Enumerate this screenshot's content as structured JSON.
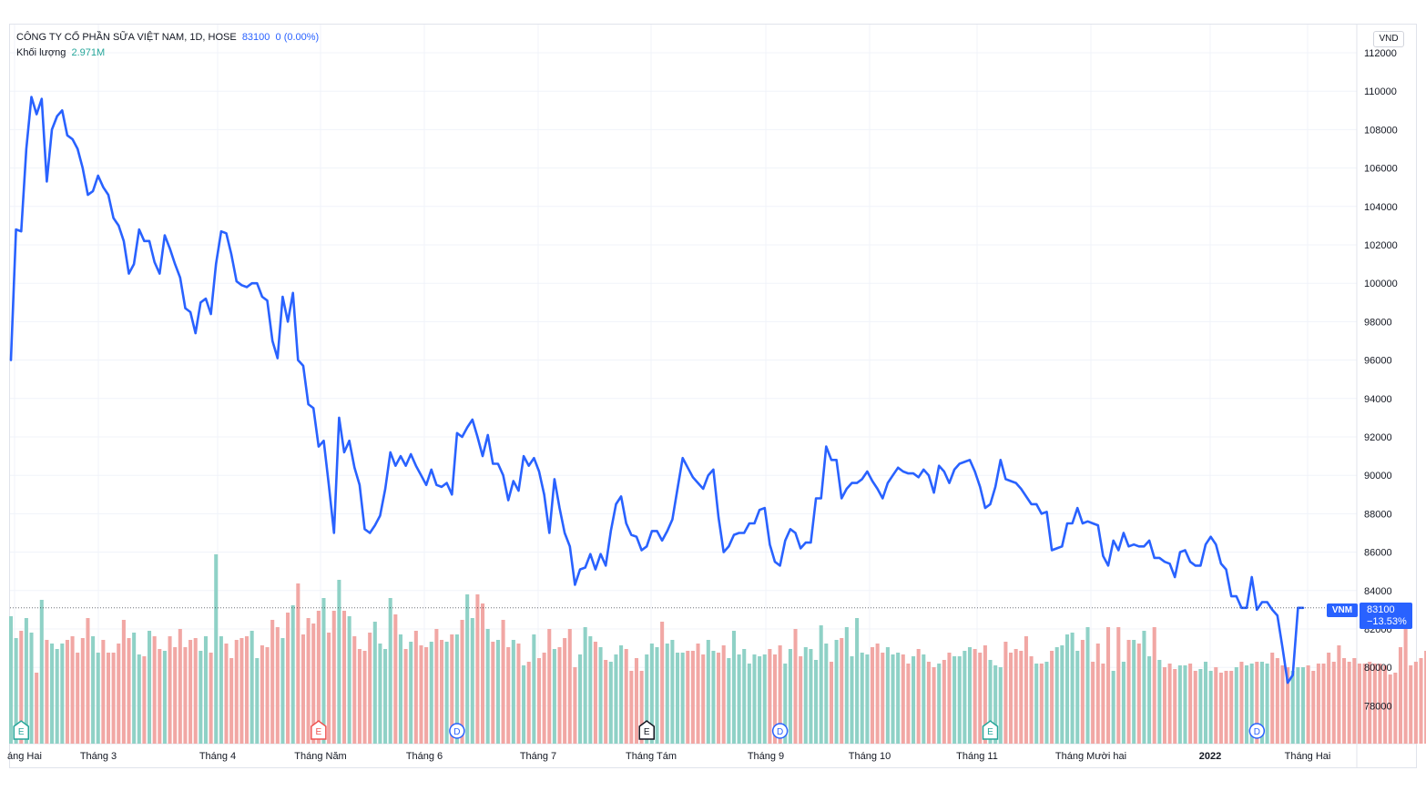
{
  "legend": {
    "symbol_text": "CÔNG TY CỔ PHẦN SỮA VIỆT NAM, 1D, HOSE",
    "last_value": "83100",
    "change_text": "0 (0.00%)",
    "volume_label": "Khối lượng",
    "volume_value": "2.971M"
  },
  "currency": "VND",
  "price_tag": {
    "symbol": "VNM",
    "price": "83100",
    "change_pct": "−13.53%"
  },
  "colors": {
    "line": "#2962ff",
    "volume_up": "#8fd1c6",
    "volume_down": "#f1a7a4",
    "grid": "#f0f3fa",
    "event_earnings": "#26a69a",
    "event_earnings_down": "#ef5350",
    "event_dividend": "#2962ff"
  },
  "chart_data": {
    "type": "line",
    "y_ticks": [
      78000,
      80000,
      82000,
      84000,
      86000,
      88000,
      90000,
      92000,
      94000,
      96000,
      98000,
      100000,
      102000,
      104000,
      106000,
      108000,
      110000,
      112000
    ],
    "ylim": [
      76000,
      113000
    ],
    "x_labels": [
      {
        "text": "áng Hai",
        "bold": false
      },
      {
        "text": "Tháng 3",
        "bold": false
      },
      {
        "text": "Tháng 4",
        "bold": false
      },
      {
        "text": "Tháng Năm",
        "bold": false
      },
      {
        "text": "Tháng 6",
        "bold": false
      },
      {
        "text": "Tháng 7",
        "bold": false
      },
      {
        "text": "Tháng Tám",
        "bold": false
      },
      {
        "text": "Tháng 9",
        "bold": false
      },
      {
        "text": "Tháng 10",
        "bold": false
      },
      {
        "text": "Tháng 11",
        "bold": false
      },
      {
        "text": "Tháng Mười hai",
        "bold": false
      },
      {
        "text": "2022",
        "bold": true
      },
      {
        "text": "Tháng Hai",
        "bold": false
      }
    ],
    "series": [
      {
        "values": [
          96000,
          102800,
          102700,
          107000,
          109700,
          108800,
          109600,
          105300,
          108000,
          108700,
          109000,
          107700,
          107500,
          107000,
          106000,
          104600,
          104800,
          105600,
          105000,
          104600,
          103400,
          103000,
          102200,
          100500,
          101000,
          102800,
          102200,
          102200,
          101100,
          100500,
          102500,
          101800,
          101000,
          100300,
          98700,
          98500,
          97400,
          99000,
          99200,
          98400,
          101000,
          102700,
          102600,
          101500,
          100100,
          99900,
          99800,
          100000,
          100000,
          99300,
          99100,
          97000,
          96100,
          99300,
          98000,
          99500,
          96000,
          95700,
          93700,
          93500,
          91500,
          91800,
          89500,
          87000,
          93000,
          91200,
          91800,
          90400,
          89500,
          87200,
          87000,
          87400,
          87900,
          89300,
          91200,
          90500,
          91000,
          90500,
          91100,
          90500,
          90000,
          89500,
          90300,
          89500,
          89400,
          89600,
          89000,
          92200,
          92000,
          92500,
          92900,
          92000,
          91000,
          92100,
          90600,
          90600,
          90000,
          88700,
          89700,
          89200,
          91000,
          90500,
          90900,
          90200,
          89000,
          87000,
          89800,
          88300,
          87000,
          86300,
          84300,
          85100,
          85200,
          85900,
          85100,
          85900,
          85300,
          87100,
          88500,
          88900,
          87500,
          86900,
          86800,
          86100,
          86300,
          87100,
          87100,
          86600,
          87100,
          87700,
          89300,
          90900,
          90400,
          89900,
          89600,
          89300,
          90000,
          90300,
          87800,
          86000,
          86300,
          86900,
          87000,
          87000,
          87500,
          87500,
          88200,
          88300,
          86400,
          85500,
          85300,
          86600,
          87200,
          87000,
          86200,
          86500,
          86500,
          88800,
          88800,
          91500,
          90800,
          90800,
          88800,
          89300,
          89600,
          89600,
          89800,
          90200,
          89700,
          89300,
          88800,
          89600,
          90000,
          90400,
          90200,
          90100,
          90100,
          89900,
          90300,
          90000,
          89100,
          90500,
          90200,
          89600,
          90300,
          90600,
          90700,
          90800,
          90200,
          89400,
          88300,
          88500,
          89400,
          90800,
          89800,
          89700,
          89600,
          89300,
          88900,
          88500,
          88500,
          88000,
          88100,
          86100,
          86200,
          86300,
          87500,
          87500,
          88300,
          87500,
          87600,
          87500,
          87400,
          85800,
          85300,
          86600,
          86100,
          87000,
          86300,
          86400,
          86300,
          86300,
          86600,
          85700,
          85700,
          85500,
          85400,
          84700,
          86000,
          86100,
          85500,
          85300,
          85300,
          86400,
          86800,
          86400,
          85400,
          85100,
          83700,
          83700,
          83100,
          83100,
          84700,
          83000,
          83400,
          83400,
          83000,
          82700,
          81000,
          79200,
          79600,
          83100,
          83100
        ]
      }
    ],
    "volume_ratios": [
      0.7,
      0.58,
      0.62,
      0.69,
      0.61,
      0.39,
      0.79,
      0.57,
      0.55,
      0.52,
      0.55,
      0.57,
      0.59,
      0.5,
      0.58,
      0.69,
      0.59,
      0.5,
      0.57,
      0.5,
      0.5,
      0.55,
      0.68,
      0.58,
      0.61,
      0.49,
      0.48,
      0.62,
      0.59,
      0.52,
      0.51,
      0.59,
      0.53,
      0.63,
      0.53,
      0.57,
      0.58,
      0.51,
      0.59,
      0.5,
      1.04,
      0.59,
      0.55,
      0.47,
      0.57,
      0.58,
      0.59,
      0.62,
      0.47,
      0.54,
      0.53,
      0.68,
      0.64,
      0.58,
      0.72,
      0.76,
      0.88,
      0.6,
      0.69,
      0.66,
      0.73,
      0.8,
      0.61,
      0.73,
      0.9,
      0.73,
      0.7,
      0.59,
      0.52,
      0.51,
      0.61,
      0.67,
      0.55,
      0.52,
      0.8,
      0.71,
      0.6,
      0.52,
      0.56,
      0.62,
      0.54,
      0.53,
      0.56,
      0.63,
      0.57,
      0.56,
      0.6,
      0.6,
      0.68,
      0.82,
      0.69,
      0.82,
      0.77,
      0.63,
      0.56,
      0.57,
      0.68,
      0.53,
      0.57,
      0.55,
      0.43,
      0.45,
      0.6,
      0.47,
      0.5,
      0.63,
      0.52,
      0.53,
      0.58,
      0.63,
      0.42,
      0.49,
      0.64,
      0.59,
      0.56,
      0.53,
      0.46,
      0.45,
      0.49,
      0.54,
      0.52,
      0.4,
      0.47,
      0.4,
      0.49,
      0.55,
      0.53,
      0.67,
      0.55,
      0.57,
      0.5,
      0.5,
      0.51,
      0.51,
      0.55,
      0.49,
      0.57,
      0.51,
      0.5,
      0.54,
      0.47,
      0.62,
      0.49,
      0.52,
      0.44,
      0.49,
      0.48,
      0.49,
      0.52,
      0.49,
      0.54,
      0.44,
      0.52,
      0.63,
      0.48,
      0.53,
      0.52,
      0.46,
      0.65,
      0.55,
      0.45,
      0.57,
      0.58,
      0.64,
      0.48,
      0.69,
      0.5,
      0.49,
      0.53,
      0.55,
      0.5,
      0.53,
      0.49,
      0.5,
      0.49,
      0.44,
      0.48,
      0.52,
      0.49,
      0.45,
      0.42,
      0.44,
      0.46,
      0.5,
      0.48,
      0.48,
      0.51,
      0.53,
      0.52,
      0.5,
      0.54,
      0.46,
      0.43,
      0.42,
      0.56,
      0.5,
      0.52,
      0.51,
      0.59,
      0.48,
      0.44,
      0.44,
      0.45,
      0.51,
      0.53,
      0.54,
      0.6,
      0.61,
      0.51,
      0.57,
      0.64,
      0.45,
      0.55,
      0.44,
      0.64,
      0.4,
      0.64,
      0.45,
      0.57,
      0.57,
      0.55,
      0.62,
      0.48,
      0.64,
      0.46,
      0.42,
      0.44,
      0.41,
      0.43,
      0.43,
      0.44,
      0.4,
      0.41,
      0.45,
      0.4,
      0.42,
      0.39,
      0.4,
      0.4,
      0.42,
      0.45,
      0.43,
      0.44,
      0.45,
      0.45,
      0.44,
      0.5,
      0.47,
      0.43,
      0.42,
      0.4,
      0.42,
      0.42,
      0.43,
      0.4,
      0.44,
      0.44,
      0.5,
      0.45,
      0.54,
      0.47,
      0.45,
      0.47,
      0.44,
      0.44,
      0.45,
      0.44,
      0.44,
      0.43,
      0.38,
      0.39,
      0.53,
      0.66,
      0.43,
      0.45,
      0.47,
      0.51
    ],
    "events": [
      {
        "label": "E",
        "kind": "earnings_up",
        "index": 2
      },
      {
        "label": "E",
        "kind": "earnings_down",
        "index": 60
      },
      {
        "label": "D",
        "kind": "dividend",
        "index": 87
      },
      {
        "label": "E",
        "kind": "earnings_neutral",
        "index": 124
      },
      {
        "label": "D",
        "kind": "dividend",
        "index": 150
      },
      {
        "label": "E",
        "kind": "earnings_up",
        "index": 191
      },
      {
        "label": "D",
        "kind": "dividend",
        "index": 243
      }
    ]
  }
}
